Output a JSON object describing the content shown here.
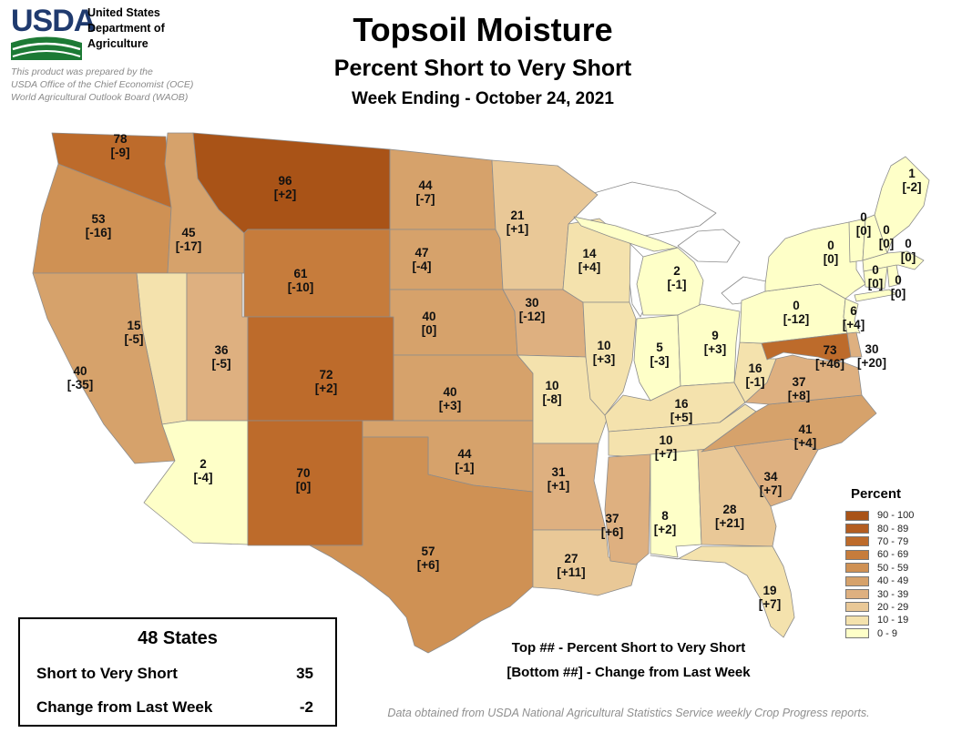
{
  "header": {
    "logo_text": "USDA",
    "agency_lines": [
      "United States",
      "Department of",
      "Agriculture"
    ],
    "prepared_by_lines": [
      "This product was prepared by the",
      "USDA Office of the Chief Economist (OCE)",
      "World Agricultural Outlook Board (WAOB)"
    ]
  },
  "title": "Topsoil Moisture",
  "subtitle": "Percent Short to Very Short",
  "week_ending": "Week Ending - October 24, 2021",
  "legend": {
    "title": "Percent",
    "classes": [
      {
        "range": "90 - 100",
        "color": "#a95317"
      },
      {
        "range": "80 - 89",
        "color": "#b35d21"
      },
      {
        "range": "70 - 79",
        "color": "#bd6b2b"
      },
      {
        "range": "60 - 69",
        "color": "#c67c3c"
      },
      {
        "range": "50 - 59",
        "color": "#cf9154"
      },
      {
        "range": "40 - 49",
        "color": "#d6a26b"
      },
      {
        "range": "30 - 39",
        "color": "#deb080"
      },
      {
        "range": "20 - 29",
        "color": "#e9c897"
      },
      {
        "range": "10 - 19",
        "color": "#f4e2ad"
      },
      {
        "range": "0 - 9",
        "color": "#feffc8"
      }
    ]
  },
  "summary_box": {
    "heading": "48 States",
    "rows": [
      {
        "label": "Short to Very Short",
        "value": "35"
      },
      {
        "label": "Change from Last Week",
        "value": "-2"
      }
    ]
  },
  "notes": {
    "top": "Top ## - Percent Short to Very Short",
    "bottom": "[Bottom ##] - Change from Last Week"
  },
  "source": "Data obtained from USDA National Agricultural Statistics Service weekly Crop Progress reports.",
  "chart_data": {
    "type": "heatmap",
    "subtype": "us-state-choropleth",
    "title": "Topsoil Moisture - Percent Short to Very Short",
    "week_ending": "October 24, 2021",
    "value_label": "Percent Short to Very Short",
    "change_label": "Change from Last Week",
    "classes": [
      "90 - 100",
      "80 - 89",
      "70 - 79",
      "60 - 69",
      "50 - 59",
      "40 - 49",
      "30 - 39",
      "20 - 29",
      "10 - 19",
      "0 - 9"
    ],
    "national": {
      "coverage": "48 States",
      "short_to_very_short": 35,
      "change_from_last_week": -2
    },
    "states": [
      {
        "abbr": "WA",
        "name": "Washington",
        "value": 78,
        "change": "-9"
      },
      {
        "abbr": "OR",
        "name": "Oregon",
        "value": 53,
        "change": "-16"
      },
      {
        "abbr": "CA",
        "name": "California",
        "value": 40,
        "change": "-35"
      },
      {
        "abbr": "ID",
        "name": "Idaho",
        "value": 45,
        "change": "-17"
      },
      {
        "abbr": "NV",
        "name": "Nevada",
        "value": 15,
        "change": "-5"
      },
      {
        "abbr": "UT",
        "name": "Utah",
        "value": 36,
        "change": "-5"
      },
      {
        "abbr": "AZ",
        "name": "Arizona",
        "value": 2,
        "change": "-4"
      },
      {
        "abbr": "MT",
        "name": "Montana",
        "value": 96,
        "change": "+2"
      },
      {
        "abbr": "WY",
        "name": "Wyoming",
        "value": 61,
        "change": "-10"
      },
      {
        "abbr": "CO",
        "name": "Colorado",
        "value": 72,
        "change": "+2"
      },
      {
        "abbr": "NM",
        "name": "New Mexico",
        "value": 70,
        "change": "0"
      },
      {
        "abbr": "ND",
        "name": "North Dakota",
        "value": 44,
        "change": "-7"
      },
      {
        "abbr": "SD",
        "name": "South Dakota",
        "value": 47,
        "change": "-4"
      },
      {
        "abbr": "NE",
        "name": "Nebraska",
        "value": 40,
        "change": "0"
      },
      {
        "abbr": "KS",
        "name": "Kansas",
        "value": 40,
        "change": "+3"
      },
      {
        "abbr": "OK",
        "name": "Oklahoma",
        "value": 44,
        "change": "-1"
      },
      {
        "abbr": "TX",
        "name": "Texas",
        "value": 57,
        "change": "+6"
      },
      {
        "abbr": "MN",
        "name": "Minnesota",
        "value": 21,
        "change": "+1"
      },
      {
        "abbr": "IA",
        "name": "Iowa",
        "value": 30,
        "change": "-12"
      },
      {
        "abbr": "MO",
        "name": "Missouri",
        "value": 10,
        "change": "-8"
      },
      {
        "abbr": "AR",
        "name": "Arkansas",
        "value": 31,
        "change": "+1"
      },
      {
        "abbr": "LA",
        "name": "Louisiana",
        "value": 27,
        "change": "+11"
      },
      {
        "abbr": "WI",
        "name": "Wisconsin",
        "value": 14,
        "change": "+4"
      },
      {
        "abbr": "IL",
        "name": "Illinois",
        "value": 10,
        "change": "+3"
      },
      {
        "abbr": "MI",
        "name": "Michigan",
        "value": 2,
        "change": "-1"
      },
      {
        "abbr": "IN",
        "name": "Indiana",
        "value": 5,
        "change": "-3"
      },
      {
        "abbr": "OH",
        "name": "Ohio",
        "value": 9,
        "change": "+3"
      },
      {
        "abbr": "KY",
        "name": "Kentucky",
        "value": 16,
        "change": "+5"
      },
      {
        "abbr": "TN",
        "name": "Tennessee",
        "value": 10,
        "change": "+7"
      },
      {
        "abbr": "MS",
        "name": "Mississippi",
        "value": 37,
        "change": "+6"
      },
      {
        "abbr": "AL",
        "name": "Alabama",
        "value": 8,
        "change": "+2"
      },
      {
        "abbr": "GA",
        "name": "Georgia",
        "value": 28,
        "change": "+21"
      },
      {
        "abbr": "FL",
        "name": "Florida",
        "value": 19,
        "change": "+7"
      },
      {
        "abbr": "SC",
        "name": "South Carolina",
        "value": 34,
        "change": "+7"
      },
      {
        "abbr": "NC",
        "name": "North Carolina",
        "value": 41,
        "change": "+4"
      },
      {
        "abbr": "VA",
        "name": "Virginia",
        "value": 37,
        "change": "+8"
      },
      {
        "abbr": "WV",
        "name": "West Virginia",
        "value": 16,
        "change": "-1"
      },
      {
        "abbr": "MD",
        "name": "Maryland",
        "value": 73,
        "change": "+46"
      },
      {
        "abbr": "DE",
        "name": "Delaware",
        "value": 30,
        "change": "+20"
      },
      {
        "abbr": "NJ",
        "name": "New Jersey",
        "value": 6,
        "change": "+4"
      },
      {
        "abbr": "PA",
        "name": "Pennsylvania",
        "value": 0,
        "change": "-12"
      },
      {
        "abbr": "NY",
        "name": "New York",
        "value": 0,
        "change": "0"
      },
      {
        "abbr": "CT",
        "name": "Connecticut",
        "value": 0,
        "change": "0"
      },
      {
        "abbr": "RI",
        "name": "Rhode Island",
        "value": 0,
        "change": "0"
      },
      {
        "abbr": "MA",
        "name": "Massachusetts",
        "value": 0,
        "change": "0"
      },
      {
        "abbr": "VT",
        "name": "Vermont",
        "value": 0,
        "change": "0"
      },
      {
        "abbr": "NH",
        "name": "New Hampshire",
        "value": 0,
        "change": "0"
      },
      {
        "abbr": "ME",
        "name": "Maine",
        "value": 1,
        "change": "-2"
      }
    ]
  }
}
